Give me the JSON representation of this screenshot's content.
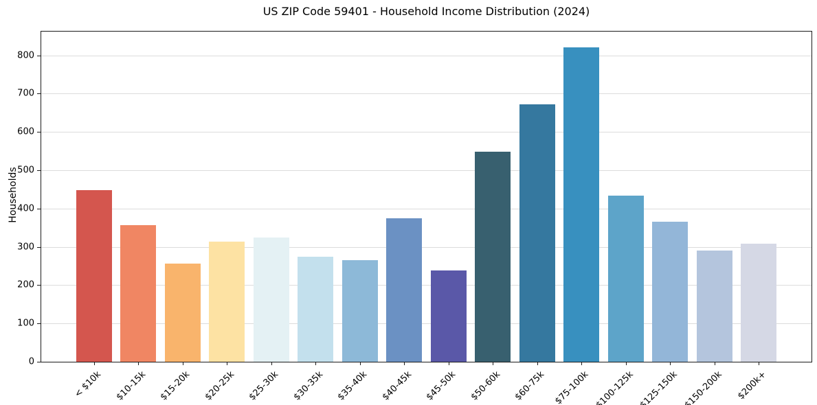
{
  "chart_data": {
    "type": "bar",
    "title": "US ZIP Code 59401 - Household Income Distribution (2024)",
    "xlabel": "",
    "ylabel": "Households",
    "categories": [
      "< $10k",
      "$10-15k",
      "$15-20k",
      "$20-25k",
      "$25-30k",
      "$30-35k",
      "$35-40k",
      "$40-45k",
      "$45-50k",
      "$50-60k",
      "$60-75k",
      "$75-100k",
      "$100-125k",
      "$125-150k",
      "$150-200k",
      "$200k+"
    ],
    "values": [
      448,
      357,
      256,
      313,
      324,
      274,
      266,
      374,
      239,
      549,
      672,
      821,
      433,
      365,
      290,
      309
    ],
    "bar_colors": [
      "#d4564e",
      "#f08663",
      "#f9b46c",
      "#fde2a3",
      "#e4f1f4",
      "#c3e0ed",
      "#8db9d8",
      "#6b91c3",
      "#5a58a8",
      "#38606f",
      "#35789f",
      "#3890bf",
      "#5da4c9",
      "#93b6d8",
      "#b4c5dd",
      "#d5d8e5"
    ],
    "yticks": [
      0,
      100,
      200,
      300,
      400,
      500,
      600,
      700,
      800
    ],
    "ylim": [
      0,
      862
    ],
    "grid": "horizontal",
    "legend_position": "none",
    "grid_color": "#dcdcdc",
    "axis_color": "#1a1a1a"
  }
}
